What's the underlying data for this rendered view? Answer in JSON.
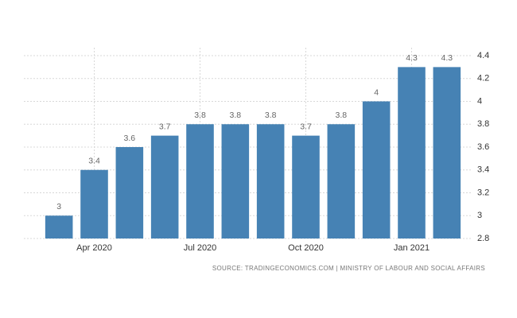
{
  "chart_data": {
    "type": "bar",
    "categories": [
      null,
      "Apr 2020",
      null,
      null,
      "Jul 2020",
      null,
      null,
      "Oct 2020",
      null,
      null,
      "Jan 2021",
      null
    ],
    "values": [
      3,
      3.4,
      3.6,
      3.7,
      3.8,
      3.8,
      3.8,
      3.7,
      3.8,
      4,
      4.3,
      4.3
    ],
    "color": "#4682b4",
    "ylim": [
      2.8,
      4.4
    ],
    "yticks": [
      2.8,
      3,
      3.2,
      3.4,
      3.6,
      3.8,
      4,
      4.2,
      4.4
    ],
    "grid": true,
    "source": "SOURCE: TRADINGECONOMICS.COM | MINISTRY OF LABOUR AND SOCIAL AFFAIRS"
  }
}
